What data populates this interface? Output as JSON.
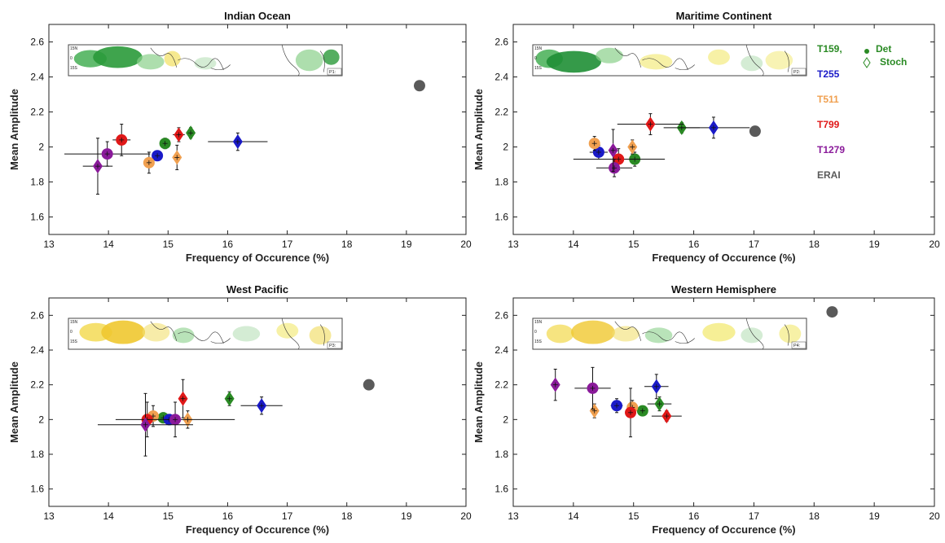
{
  "chart_data": [
    {
      "type": "scatter",
      "title": "Indian Ocean",
      "xlabel": "Frequency of Occurence (%)",
      "ylabel": "Mean Amplitude",
      "xlim": [
        13,
        20
      ],
      "ylim": [
        1.5,
        2.7
      ],
      "xticks": [
        "13",
        "14",
        "15",
        "16",
        "17",
        "18",
        "19",
        "20"
      ],
      "yticks": [
        "1.6",
        "1.8",
        "2",
        "2.2",
        "2.4",
        "2.6"
      ],
      "inset_label": "P1:",
      "inset_lat_labels": [
        "15N",
        "0",
        "15S"
      ],
      "points": [
        {
          "series": "T159",
          "marker": "circle",
          "x": 14.95,
          "y": 2.02,
          "xerr": 0.05,
          "yerr": 0.03
        },
        {
          "series": "T159",
          "marker": "diamond",
          "x": 15.38,
          "y": 2.08,
          "xerr": 0.04,
          "yerr": 0.03
        },
        {
          "series": "T255",
          "marker": "circle",
          "x": 14.82,
          "y": 1.95,
          "xerr": 0.05,
          "yerr": 0.02
        },
        {
          "series": "T255",
          "marker": "diamond",
          "x": 16.17,
          "y": 2.03,
          "xerr": 0.5,
          "yerr": 0.05
        },
        {
          "series": "T511",
          "marker": "circle",
          "x": 14.68,
          "y": 1.91,
          "xerr": 0.05,
          "yerr": 0.06
        },
        {
          "series": "T511",
          "marker": "diamond",
          "x": 15.15,
          "y": 1.94,
          "xerr": 0.04,
          "yerr": 0.07
        },
        {
          "series": "T799",
          "marker": "circle",
          "x": 14.22,
          "y": 2.04,
          "xerr": 0.15,
          "yerr": 0.09
        },
        {
          "series": "T799",
          "marker": "diamond",
          "x": 15.18,
          "y": 2.07,
          "xerr": 0.1,
          "yerr": 0.04
        },
        {
          "series": "T1279",
          "marker": "circle",
          "x": 13.98,
          "y": 1.96,
          "xerr": 0.72,
          "yerr": 0.07
        },
        {
          "series": "T1279",
          "marker": "diamond",
          "x": 13.82,
          "y": 1.89,
          "xerr": 0.25,
          "yerr": 0.16
        },
        {
          "series": "ERAI",
          "marker": "circle",
          "x": 19.22,
          "y": 2.35,
          "xerr": 0,
          "yerr": 0
        }
      ]
    },
    {
      "type": "scatter",
      "title": "Maritime Continent",
      "xlabel": "Frequency of Occurence (%)",
      "ylabel": "Mean Amplitude",
      "xlim": [
        13,
        20
      ],
      "ylim": [
        1.5,
        2.7
      ],
      "xticks": [
        "13",
        "14",
        "15",
        "16",
        "17",
        "18",
        "19",
        "20"
      ],
      "yticks": [
        "1.6",
        "1.8",
        "2",
        "2.2",
        "2.4",
        "2.6"
      ],
      "inset_label": "P2:",
      "inset_lat_labels": [
        "15N",
        "0",
        "15S"
      ],
      "points": [
        {
          "series": "T159",
          "marker": "circle",
          "x": 15.02,
          "y": 1.93,
          "xerr": 0.5,
          "yerr": 0.04
        },
        {
          "series": "T159",
          "marker": "diamond",
          "x": 15.8,
          "y": 2.11,
          "xerr": 0.3,
          "yerr": 0.03
        },
        {
          "series": "T255",
          "marker": "circle",
          "x": 14.42,
          "y": 1.97,
          "xerr": 0.15,
          "yerr": 0.04
        },
        {
          "series": "T255",
          "marker": "diamond",
          "x": 16.33,
          "y": 2.11,
          "xerr": 0.6,
          "yerr": 0.06
        },
        {
          "series": "T511",
          "marker": "circle",
          "x": 14.35,
          "y": 2.02,
          "xerr": 0.08,
          "yerr": 0.04
        },
        {
          "series": "T511",
          "marker": "diamond",
          "x": 14.98,
          "y": 2.0,
          "xerr": 0.05,
          "yerr": 0.04
        },
        {
          "series": "T799",
          "marker": "circle",
          "x": 14.75,
          "y": 1.93,
          "xerr": 0.75,
          "yerr": 0.06
        },
        {
          "series": "T799",
          "marker": "diamond",
          "x": 15.28,
          "y": 2.13,
          "xerr": 0.55,
          "yerr": 0.06
        },
        {
          "series": "T1279",
          "marker": "circle",
          "x": 14.68,
          "y": 1.88,
          "xerr": 0.3,
          "yerr": 0.05
        },
        {
          "series": "T1279",
          "marker": "diamond",
          "x": 14.66,
          "y": 1.98,
          "xerr": 0.05,
          "yerr": 0.12
        },
        {
          "series": "ERAI",
          "marker": "circle",
          "x": 17.02,
          "y": 2.09,
          "xerr": 0,
          "yerr": 0
        }
      ]
    },
    {
      "type": "scatter",
      "title": "West Pacific",
      "xlabel": "Frequency of Occurence (%)",
      "ylabel": "Mean Amplitude",
      "xlim": [
        13,
        20
      ],
      "ylim": [
        1.5,
        2.7
      ],
      "xticks": [
        "13",
        "14",
        "15",
        "16",
        "17",
        "18",
        "19",
        "20"
      ],
      "yticks": [
        "1.6",
        "1.8",
        "2",
        "2.2",
        "2.4",
        "2.6"
      ],
      "inset_label": "P3:",
      "inset_lat_labels": [
        "15N",
        "0",
        "15S"
      ],
      "points": [
        {
          "series": "T159",
          "marker": "circle",
          "x": 14.92,
          "y": 2.01,
          "xerr": 0.05,
          "yerr": 0.03
        },
        {
          "series": "T159",
          "marker": "diamond",
          "x": 16.03,
          "y": 2.12,
          "xerr": 0.04,
          "yerr": 0.04
        },
        {
          "series": "T255",
          "marker": "circle",
          "x": 15.02,
          "y": 2.0,
          "xerr": 0.05,
          "yerr": 0.03
        },
        {
          "series": "T255",
          "marker": "diamond",
          "x": 16.57,
          "y": 2.08,
          "xerr": 0.35,
          "yerr": 0.05
        },
        {
          "series": "T511",
          "marker": "circle",
          "x": 14.75,
          "y": 2.02,
          "xerr": 0.05,
          "yerr": 0.06
        },
        {
          "series": "T511",
          "marker": "diamond",
          "x": 15.33,
          "y": 2.0,
          "xerr": 0.04,
          "yerr": 0.05
        },
        {
          "series": "T799",
          "marker": "circle",
          "x": 14.65,
          "y": 2.0,
          "xerr": 0.05,
          "yerr": 0.1
        },
        {
          "series": "T799",
          "marker": "diamond",
          "x": 15.25,
          "y": 2.12,
          "xerr": 0.05,
          "yerr": 0.11
        },
        {
          "series": "T1279",
          "marker": "circle",
          "x": 15.12,
          "y": 2.0,
          "xerr": 1.0,
          "yerr": 0.1
        },
        {
          "series": "T1279",
          "marker": "diamond",
          "x": 14.62,
          "y": 1.97,
          "xerr": 0.8,
          "yerr": 0.18
        },
        {
          "series": "ERAI",
          "marker": "circle",
          "x": 18.37,
          "y": 2.2,
          "xerr": 0,
          "yerr": 0
        }
      ]
    },
    {
      "type": "scatter",
      "title": "Western Hemisphere",
      "xlabel": "Frequency of Occurence (%)",
      "ylabel": "Mean Amplitude",
      "xlim": [
        13,
        20
      ],
      "ylim": [
        1.5,
        2.7
      ],
      "xticks": [
        "13",
        "14",
        "15",
        "16",
        "17",
        "18",
        "19",
        "20"
      ],
      "yticks": [
        "1.6",
        "1.8",
        "2",
        "2.2",
        "2.4",
        "2.6"
      ],
      "inset_label": "P4:",
      "inset_lat_labels": [
        "15N",
        "0",
        "15S"
      ],
      "points": [
        {
          "series": "T159",
          "marker": "circle",
          "x": 15.15,
          "y": 2.05,
          "xerr": 0.05,
          "yerr": 0.02
        },
        {
          "series": "T159",
          "marker": "diamond",
          "x": 15.43,
          "y": 2.09,
          "xerr": 0.2,
          "yerr": 0.04
        },
        {
          "series": "T255",
          "marker": "circle",
          "x": 14.72,
          "y": 2.08,
          "xerr": 0.1,
          "yerr": 0.04
        },
        {
          "series": "T255",
          "marker": "diamond",
          "x": 15.38,
          "y": 2.19,
          "xerr": 0.2,
          "yerr": 0.07
        },
        {
          "series": "T511",
          "marker": "circle",
          "x": 14.98,
          "y": 2.07,
          "xerr": 0.05,
          "yerr": 0.04
        },
        {
          "series": "T511",
          "marker": "diamond",
          "x": 14.35,
          "y": 2.05,
          "xerr": 0.05,
          "yerr": 0.04
        },
        {
          "series": "T799",
          "marker": "circle",
          "x": 14.95,
          "y": 2.04,
          "xerr": 0.05,
          "yerr": 0.14
        },
        {
          "series": "T799",
          "marker": "diamond",
          "x": 15.55,
          "y": 2.02,
          "xerr": 0.25,
          "yerr": 0.03
        },
        {
          "series": "T1279",
          "marker": "circle",
          "x": 14.32,
          "y": 2.18,
          "xerr": 0.3,
          "yerr": 0.12
        },
        {
          "series": "T1279",
          "marker": "diamond",
          "x": 13.7,
          "y": 2.2,
          "xerr": 0.05,
          "yerr": 0.09
        },
        {
          "series": "ERAI",
          "marker": "circle",
          "x": 18.3,
          "y": 2.62,
          "xerr": 0,
          "yerr": 0
        }
      ]
    }
  ],
  "legend": {
    "series": [
      {
        "name": "T159,",
        "color": "#2a8a24"
      },
      {
        "name": "T255",
        "color": "#1a1ac8"
      },
      {
        "name": "T511",
        "color": "#f0a050"
      },
      {
        "name": "T799",
        "color": "#e01818"
      },
      {
        "name": "T1279",
        "color": "#8a1a9a"
      },
      {
        "name": "ERAI",
        "color": "#5a5a5a"
      }
    ],
    "det_label": "Det",
    "stoch_label": "Stoch"
  },
  "colors": {
    "T159": "#2a8a24",
    "T255": "#1a1ac8",
    "T511": "#f0a050",
    "T799": "#e01818",
    "T1279": "#8a1a9a",
    "ERAI": "#5a5a5a"
  }
}
